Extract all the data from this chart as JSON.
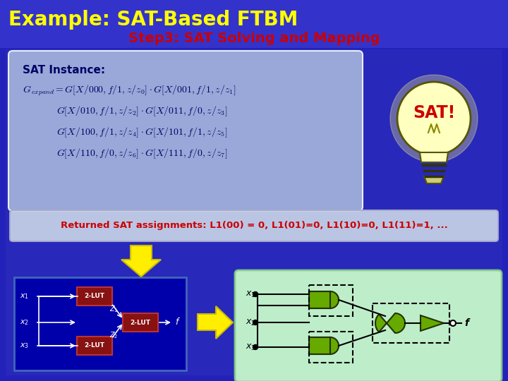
{
  "title": "Example: SAT-Based FTBM",
  "subtitle": "Step3: SAT Solving and Mapping",
  "title_color": "#FFFF00",
  "subtitle_color": "#CC0000",
  "bg_color": "#2222BB",
  "sat_box_bg": "#AABBDD",
  "sat_box_edge": "#FFFFFF",
  "ret_box_bg": "#C8D4E8",
  "ret_box_edge": "#AAAACC",
  "returned_text": "Returned SAT assignments: L1(00) = 0, L1(01)=0, L1(10)=0, L1(11)=1, ...",
  "formula_color": "#000066",
  "lut_color": "#880000",
  "gate_color": "#66AA00",
  "title_fs": 20,
  "subtitle_fs": 14
}
